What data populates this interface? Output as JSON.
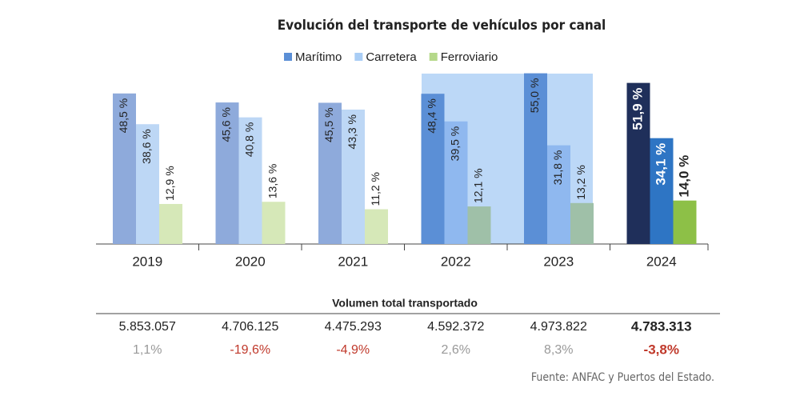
{
  "chart_data": {
    "type": "bar",
    "title": "Evolución del transporte de vehículos por canal",
    "categories": [
      "2019",
      "2020",
      "2021",
      "2022",
      "2023",
      "2024"
    ],
    "series": [
      {
        "name": "Marítimo",
        "color": "#5b8fd6",
        "colors": [
          "#8eaadb",
          "#8eaadb",
          "#8eaadb",
          "#5b8fd6",
          "#5b8fd6",
          "#1f2f5a"
        ],
        "values": [
          48.5,
          45.6,
          45.5,
          48.4,
          55.0,
          51.9
        ],
        "value_labels": [
          "48,5 %",
          "45,6 %",
          "45,5 %",
          "48,4 %",
          "55,0 %",
          "51,9 %"
        ]
      },
      {
        "name": "Carretera",
        "color": "#a9cdf5",
        "colors": [
          "#bdd7f5",
          "#bdd7f5",
          "#bdd7f5",
          "#8fb8ef",
          "#8fb8ef",
          "#2e75c4"
        ],
        "values": [
          38.6,
          40.8,
          43.3,
          39.5,
          31.8,
          34.1
        ],
        "value_labels": [
          "38,6 %",
          "40,8 %",
          "43,3 %",
          "39,5 %",
          "31,8 %",
          "34,1 %"
        ]
      },
      {
        "name": "Ferroviario",
        "color": "#b5d88a",
        "colors": [
          "#d6e8b8",
          "#d6e8b8",
          "#d6e8b8",
          "#9fc0a8",
          "#9fc0a8",
          "#8dc047"
        ],
        "values": [
          12.9,
          13.6,
          11.2,
          12.1,
          13.2,
          14.0
        ],
        "value_labels": [
          "12,9 %",
          "13,6 %",
          "11,2 %",
          "12,1 %",
          "13,2 %",
          "14,0 %"
        ]
      }
    ]
  },
  "table": {
    "title": "Volumen total transportado",
    "totals": [
      "5.853.057",
      "4.706.125",
      "4.475.293",
      "4.592.372",
      "4.973.822",
      "4.783.313"
    ],
    "changes": [
      "1,1%",
      "-19,6%",
      "-4,9%",
      "2,6%",
      "8,3%",
      "-3,8%"
    ]
  },
  "source": "Fuente: ANFAC y Puertos del Estado."
}
